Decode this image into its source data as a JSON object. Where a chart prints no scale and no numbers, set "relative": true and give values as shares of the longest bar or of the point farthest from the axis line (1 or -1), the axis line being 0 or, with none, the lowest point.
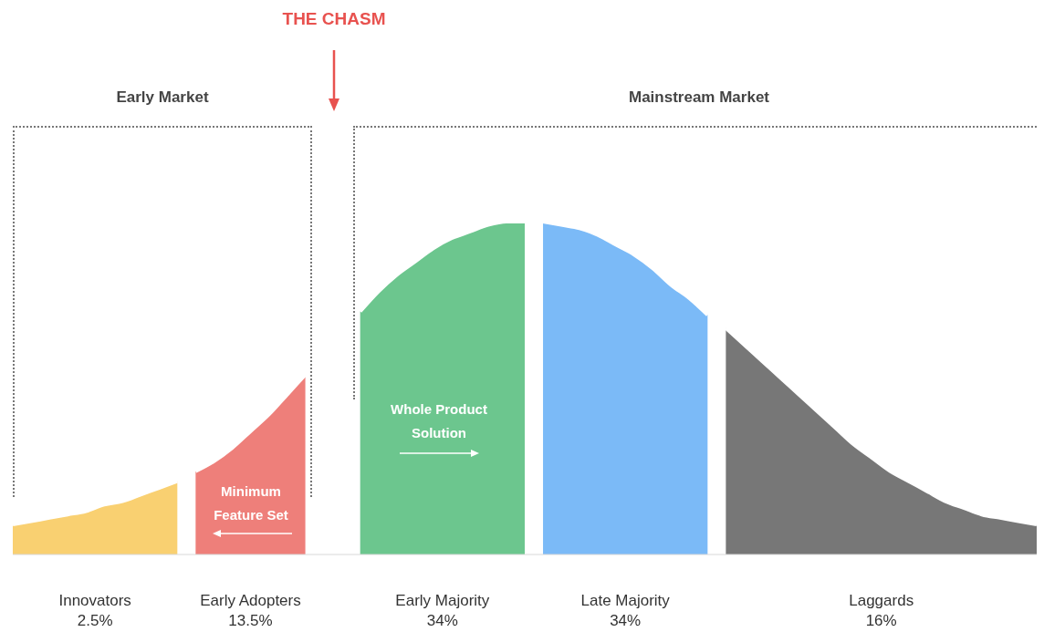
{
  "chart_data": {
    "type": "area",
    "relative": true,
    "categories": [
      null,
      null,
      null,
      null,
      null,
      null,
      null,
      null,
      null,
      null,
      null,
      null,
      null,
      null,
      null,
      null,
      null,
      null,
      null,
      null,
      null,
      null,
      null,
      null,
      null,
      null,
      null,
      null,
      null,
      null,
      null,
      null,
      null,
      null,
      null,
      null,
      null,
      null,
      null,
      null,
      null,
      null,
      null,
      null,
      null,
      null,
      null,
      null,
      null,
      null,
      null,
      null,
      null,
      null,
      null,
      null,
      null
    ],
    "series": [
      {
        "name": "Innovators",
        "color": "#f9d071",
        "values": [
          0.09,
          0.1,
          0.11,
          0.12,
          0.13,
          0.15,
          0.16,
          0.18,
          0.2,
          0.22,
          null,
          null,
          null,
          null,
          null,
          null,
          null,
          null,
          null,
          null,
          null,
          null,
          null,
          null,
          null,
          null,
          null,
          null,
          null,
          null,
          null,
          null,
          null,
          null,
          null,
          null,
          null,
          null,
          null,
          null,
          null,
          null,
          null,
          null,
          null,
          null,
          null,
          null,
          null,
          null,
          null,
          null,
          null,
          null,
          null,
          null,
          null
        ]
      },
      {
        "name": "Early Adopters",
        "color": "#ee7f7a",
        "values": [
          null,
          null,
          null,
          null,
          null,
          null,
          null,
          null,
          null,
          null,
          0.25,
          0.28,
          0.32,
          0.37,
          0.42,
          0.48,
          0.54,
          null,
          null,
          null,
          null,
          null,
          null,
          null,
          null,
          null,
          null,
          null,
          null,
          null,
          null,
          null,
          null,
          null,
          null,
          null,
          null,
          null,
          null,
          null,
          null,
          null,
          null,
          null,
          null,
          null,
          null,
          null,
          null,
          null,
          null,
          null,
          null,
          null,
          null,
          null,
          null
        ]
      },
      {
        "name": "Early Majority",
        "color": "#6cc68e",
        "values": [
          null,
          null,
          null,
          null,
          null,
          null,
          null,
          null,
          null,
          null,
          null,
          null,
          null,
          null,
          null,
          null,
          null,
          null,
          null,
          0.73,
          0.79,
          0.84,
          0.88,
          0.92,
          0.95,
          0.97,
          0.99,
          1,
          1,
          null,
          null,
          null,
          null,
          null,
          null,
          null,
          null,
          null,
          null,
          null,
          null,
          null,
          null,
          null,
          null,
          null,
          null,
          null,
          null,
          null,
          null,
          null,
          null,
          null,
          null,
          null,
          null
        ]
      },
      {
        "name": "Late Majority",
        "color": "#7bbaf7",
        "values": [
          null,
          null,
          null,
          null,
          null,
          null,
          null,
          null,
          null,
          null,
          null,
          null,
          null,
          null,
          null,
          null,
          null,
          null,
          null,
          null,
          null,
          null,
          null,
          null,
          null,
          null,
          null,
          null,
          null,
          1,
          0.99,
          0.98,
          0.96,
          0.93,
          0.9,
          0.86,
          0.81,
          0.77,
          0.72,
          null,
          null,
          null,
          null,
          null,
          null,
          null,
          null,
          null,
          null,
          null,
          null,
          null,
          null,
          null,
          null,
          null,
          null
        ]
      },
      {
        "name": "Laggards",
        "color": "#777777",
        "values": [
          null,
          null,
          null,
          null,
          null,
          null,
          null,
          null,
          null,
          null,
          null,
          null,
          null,
          null,
          null,
          null,
          null,
          null,
          null,
          null,
          null,
          null,
          null,
          null,
          null,
          null,
          null,
          null,
          null,
          null,
          null,
          null,
          null,
          null,
          null,
          null,
          null,
          null,
          null,
          0.68,
          0.63,
          0.58,
          0.53,
          0.48,
          0.43,
          0.38,
          0.33,
          0.29,
          0.25,
          0.22,
          0.19,
          0.16,
          0.14,
          0.12,
          0.11,
          0.1,
          0.09
        ]
      }
    ],
    "annotations": [
      "THE CHASM",
      "Early Market",
      "Mainstream Market",
      "Minimum Feature Set",
      "Whole Product Solution",
      "2.5%",
      "13.5%",
      "34%",
      "34%",
      "16%"
    ]
  }
}
